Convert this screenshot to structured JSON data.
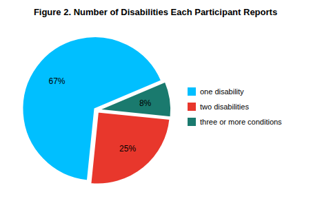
{
  "chart_data": {
    "type": "pie",
    "title": "Figure 2. Number of Disabilities Each Participant Reports",
    "categories": [
      "one disability",
      "two disabilities",
      "three or more conditions"
    ],
    "values": [
      67,
      25,
      8
    ],
    "value_labels": [
      "67%",
      "25%",
      "8%"
    ],
    "colors": [
      "#00BFFF",
      "#E8372C",
      "#1A7A6E"
    ],
    "data_labels": true,
    "legend": "right"
  }
}
